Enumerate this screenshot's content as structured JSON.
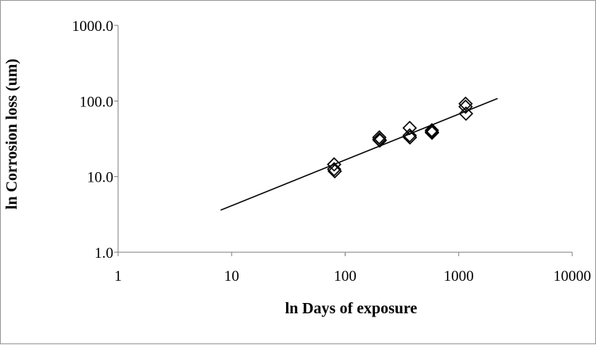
{
  "chart_data": {
    "type": "scatter",
    "title": "",
    "xlabel": "ln Days of exposure",
    "ylabel": "ln Corrosion loss (um)",
    "x_scale": "log",
    "y_scale": "log",
    "xlim": [
      1,
      10000
    ],
    "ylim": [
      1,
      1000
    ],
    "x_ticks": [
      "1",
      "10",
      "100",
      "1000",
      "10000"
    ],
    "y_ticks": [
      "1.0",
      "10.0",
      "100.0",
      "1000.0"
    ],
    "grid": false,
    "legend": "none",
    "marker": "diamond-open",
    "colors": {
      "marker": "#000000",
      "line": "#000000",
      "axis": "#808080"
    },
    "series": [
      {
        "points": [
          [
            80,
            14.5
          ],
          [
            80,
            12.5
          ],
          [
            81,
            11.8
          ],
          [
            200,
            33
          ],
          [
            200,
            31
          ],
          [
            202,
            30
          ],
          [
            370,
            44
          ],
          [
            370,
            35
          ],
          [
            372,
            33
          ],
          [
            580,
            41
          ],
          [
            580,
            39
          ],
          [
            582,
            38
          ],
          [
            1150,
            92
          ],
          [
            1150,
            84
          ],
          [
            1160,
            68
          ]
        ]
      }
    ],
    "trendline": {
      "type": "power",
      "x": [
        8,
        2200
      ],
      "y": [
        3.6,
        108
      ]
    }
  }
}
